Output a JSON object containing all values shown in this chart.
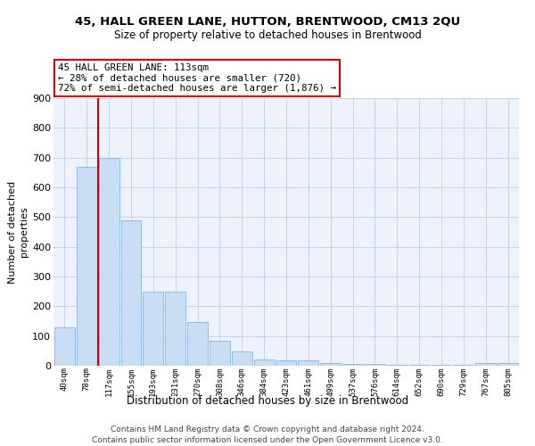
{
  "title": "45, HALL GREEN LANE, HUTTON, BRENTWOOD, CM13 2QU",
  "subtitle": "Size of property relative to detached houses in Brentwood",
  "xlabel": "Distribution of detached houses by size in Brentwood",
  "ylabel": "Number of detached\nproperties",
  "bar_labels": [
    "40sqm",
    "78sqm",
    "117sqm",
    "155sqm",
    "193sqm",
    "231sqm",
    "270sqm",
    "308sqm",
    "346sqm",
    "384sqm",
    "423sqm",
    "461sqm",
    "499sqm",
    "537sqm",
    "576sqm",
    "614sqm",
    "652sqm",
    "690sqm",
    "729sqm",
    "767sqm",
    "805sqm"
  ],
  "bar_values": [
    130,
    670,
    700,
    490,
    250,
    250,
    148,
    85,
    48,
    22,
    18,
    18,
    10,
    5,
    5,
    3,
    2,
    2,
    2,
    8,
    8
  ],
  "bar_color": "#c9ddf5",
  "bar_edgecolor": "#8ab4e0",
  "grid_color": "#c8d0e8",
  "background_color": "#eef2fc",
  "annotation_text": "45 HALL GREEN LANE: 113sqm\n← 28% of detached houses are smaller (720)\n72% of semi-detached houses are larger (1,876) →",
  "vline_color": "#cc0000",
  "vline_bar_index": 2,
  "ylim": [
    0,
    900
  ],
  "yticks": [
    0,
    100,
    200,
    300,
    400,
    500,
    600,
    700,
    800,
    900
  ],
  "footer_line1": "Contains HM Land Registry data © Crown copyright and database right 2024.",
  "footer_line2": "Contains public sector information licensed under the Open Government Licence v3.0."
}
